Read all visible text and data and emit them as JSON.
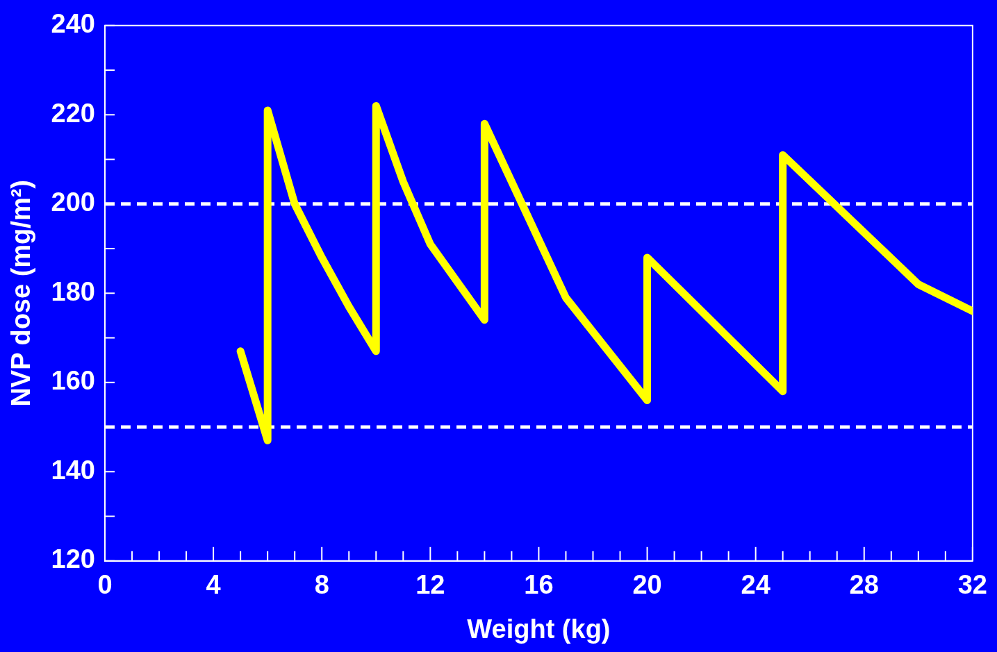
{
  "chart_data": {
    "type": "line",
    "xlabel": "Weight (kg)",
    "ylabel": "NVP dose (mg/m²)",
    "x": [
      5,
      6,
      6,
      7,
      8,
      9,
      10,
      10,
      11,
      12,
      14,
      14,
      17,
      20,
      20,
      25,
      25,
      30,
      32
    ],
    "series": [
      {
        "color": "#ffff00",
        "values": [
          167,
          147,
          221,
          200,
          188,
          177,
          167,
          222,
          205,
          191,
          174,
          218,
          179,
          156,
          188,
          158,
          211,
          182,
          176
        ]
      }
    ],
    "xlim": [
      0,
      32
    ],
    "xticks": [
      0,
      {
        "value": 1,
        "label": null
      },
      {
        "value": 2,
        "label": null
      },
      {
        "value": 3,
        "label": null
      },
      4,
      {
        "value": 5,
        "label": null
      },
      {
        "value": 6,
        "label": null
      },
      {
        "value": 7,
        "label": null
      },
      8,
      {
        "value": 9,
        "label": null
      },
      {
        "value": 10,
        "label": null
      },
      {
        "value": 11,
        "label": null
      },
      12,
      {
        "value": 13,
        "label": null
      },
      {
        "value": 14,
        "label": null
      },
      {
        "value": 15,
        "label": null
      },
      16,
      {
        "value": 17,
        "label": null
      },
      {
        "value": 18,
        "label": null
      },
      {
        "value": 19,
        "label": null
      },
      20,
      {
        "value": 21,
        "label": null
      },
      {
        "value": 22,
        "label": null
      },
      {
        "value": 23,
        "label": null
      },
      24,
      {
        "value": 25,
        "label": null
      },
      {
        "value": 26,
        "label": null
      },
      {
        "value": 27,
        "label": null
      },
      28,
      {
        "value": 29,
        "label": null
      },
      {
        "value": 30,
        "label": null
      },
      {
        "value": 31,
        "label": null
      },
      32
    ],
    "ylim": [
      120,
      240
    ],
    "yticks": [
      120,
      {
        "value": 130,
        "label": null
      },
      140,
      {
        "value": 150,
        "label": null
      },
      160,
      {
        "value": 170,
        "label": null
      },
      180,
      {
        "value": 190,
        "label": null
      },
      200,
      {
        "value": 210,
        "label": null
      },
      220,
      {
        "value": 230,
        "label": null
      },
      240
    ],
    "ref_lines": [
      {
        "axis": "y",
        "value": 200,
        "color": "#ffffff",
        "line_style": "dashed"
      },
      {
        "axis": "y",
        "value": 150,
        "color": "#ffffff",
        "line_style": "dashed"
      }
    ],
    "grid": false,
    "legend": false,
    "marker": "none",
    "line_style": "solid"
  }
}
